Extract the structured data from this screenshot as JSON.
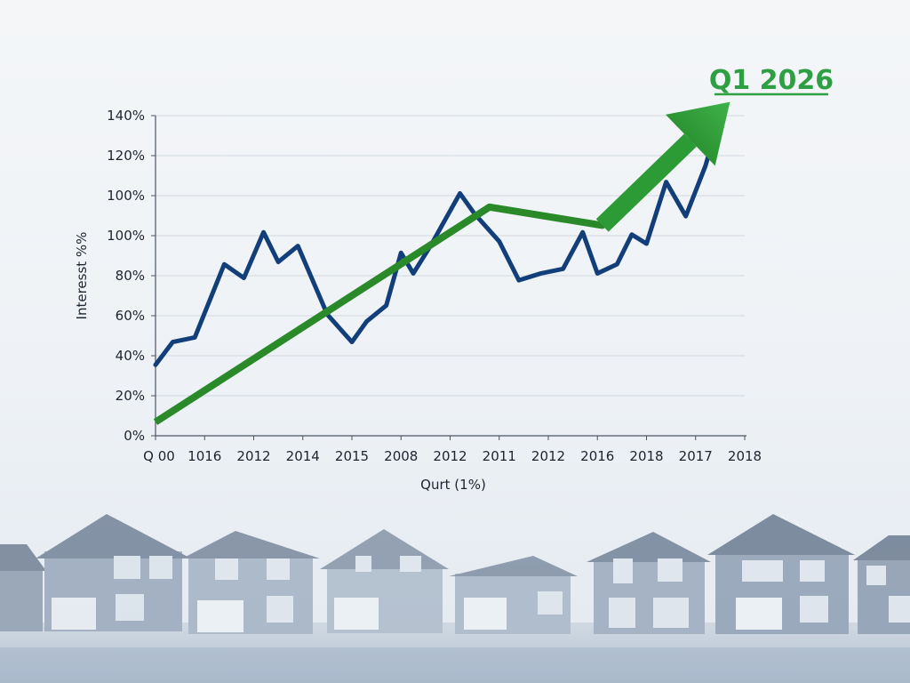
{
  "chart_data": {
    "type": "line",
    "title": "",
    "ylabel": "Interesst %%",
    "xlabel": "Qurt (1%)",
    "callout_label": "Q1 2026",
    "x_tick_labels": [
      "Q 00",
      "1016",
      "2012",
      "2014",
      "2015",
      "2008",
      "2012",
      "2011",
      "2012",
      "2016",
      "2018",
      "2017",
      "2018"
    ],
    "y_tick_labels": [
      "0%",
      "20%",
      "40%",
      "60%",
      "80%",
      "100%",
      "100%",
      "120%",
      "140%"
    ],
    "ylim": [
      0,
      160
    ],
    "grid": true,
    "series": [
      {
        "color": "#123f7a",
        "x": [
          0,
          0.35,
          0.8,
          1.4,
          1.8,
          2.2,
          2.5,
          2.9,
          3.5,
          4.0,
          4.3,
          4.7,
          5.0,
          5.25,
          5.6,
          6.2,
          6.5,
          7.0,
          7.4,
          7.85,
          8.3,
          8.7,
          9.0,
          9.4,
          9.7,
          10.0,
          10.4,
          10.8,
          11.2,
          11.5
        ],
        "y": [
          31,
          41,
          43,
          75,
          69,
          89,
          76,
          83,
          53,
          41,
          50,
          57,
          80,
          71,
          83,
          106,
          97,
          85,
          68,
          71,
          73,
          89,
          71,
          75,
          88,
          84,
          111,
          96,
          118,
          140
        ]
      },
      {
        "color": "#2a8a2a",
        "x": [
          0,
          6.8,
          9.1,
          11.7
        ],
        "y": [
          6,
          100,
          92,
          146
        ]
      }
    ]
  }
}
